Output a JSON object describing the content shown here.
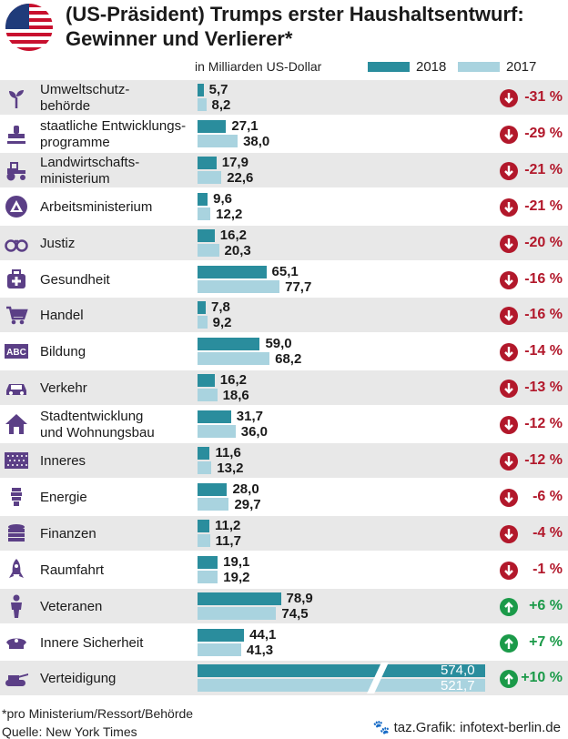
{
  "header": {
    "title_line1": "(US-Präsident) Trumps erster Haushaltsentwurf:",
    "title_line2": "Gewinner und Verlierer*",
    "unit": "in Milliarden US-Dollar",
    "legend_2018": "2018",
    "legend_2017": "2017"
  },
  "colors": {
    "bar_2018": "#2a8d9d",
    "bar_2017": "#a9d3df",
    "loss": "#b2182b",
    "gain": "#1b9a49"
  },
  "chart_data": {
    "type": "bar",
    "title": "(US-Präsident) Trumps erster Haushaltsentwurf: Gewinner und Verlierer*",
    "ylabel": "in Milliarden US-Dollar",
    "categories": [
      "Umweltschutz-behörde",
      "staatliche Entwicklungs-programme",
      "Landwirtschafts-ministerium",
      "Arbeitsministerium",
      "Justiz",
      "Gesundheit",
      "Handel",
      "Bildung",
      "Verkehr",
      "Stadtentwicklung und Wohnungsbau",
      "Inneres",
      "Energie",
      "Finanzen",
      "Raumfahrt",
      "Veteranen",
      "Innere Sicherheit",
      "Verteidigung"
    ],
    "series": [
      {
        "name": "2018",
        "values": [
          5.7,
          27.1,
          17.9,
          9.6,
          16.2,
          65.1,
          7.8,
          59.0,
          16.2,
          31.7,
          11.6,
          28.0,
          11.2,
          19.1,
          78.9,
          44.1,
          574.0
        ]
      },
      {
        "name": "2017",
        "values": [
          8.2,
          38.0,
          22.6,
          12.2,
          20.3,
          77.7,
          9.2,
          68.2,
          18.6,
          36.0,
          13.2,
          29.7,
          11.7,
          19.2,
          74.5,
          41.3,
          521.7
        ]
      }
    ],
    "scale_note": "Verteidigung bar is broken (axis break)",
    "legend": "top-right",
    "rows": [
      {
        "line1": "Umweltschutz-",
        "line2": "behörde",
        "v2018": "5,7",
        "v2017": "8,2",
        "change": "-31 %",
        "dir": "down",
        "icon": "sprout-icon"
      },
      {
        "line1": "staatliche Entwicklungs-",
        "line2": "programme",
        "v2018": "27,1",
        "v2017": "38,0",
        "change": "-29 %",
        "dir": "down",
        "icon": "stamp-icon"
      },
      {
        "line1": "Landwirtschafts-",
        "line2": "ministerium",
        "v2018": "17,9",
        "v2017": "22,6",
        "change": "-21 %",
        "dir": "down",
        "icon": "tractor-icon"
      },
      {
        "line1": "Arbeitsministerium",
        "line2": "",
        "v2018": "9,6",
        "v2017": "12,2",
        "change": "-21 %",
        "dir": "down",
        "icon": "labor-logo-icon"
      },
      {
        "line1": "Justiz",
        "line2": "",
        "v2018": "16,2",
        "v2017": "20,3",
        "change": "-20 %",
        "dir": "down",
        "icon": "handcuffs-icon"
      },
      {
        "line1": "Gesundheit",
        "line2": "",
        "v2018": "65,1",
        "v2017": "77,7",
        "change": "-16 %",
        "dir": "down",
        "icon": "medical-kit-icon"
      },
      {
        "line1": "Handel",
        "line2": "",
        "v2018": "7,8",
        "v2017": "9,2",
        "change": "-16 %",
        "dir": "down",
        "icon": "shopping-cart-icon"
      },
      {
        "line1": "Bildung",
        "line2": "",
        "v2018": "59,0",
        "v2017": "68,2",
        "change": "-14 %",
        "dir": "down",
        "icon": "abc-icon"
      },
      {
        "line1": "Verkehr",
        "line2": "",
        "v2018": "16,2",
        "v2017": "18,6",
        "change": "-13 %",
        "dir": "down",
        "icon": "car-icon"
      },
      {
        "line1": "Stadtentwicklung",
        "line2": "und Wohnungsbau",
        "v2018": "31,7",
        "v2017": "36,0",
        "change": "-12 %",
        "dir": "down",
        "icon": "house-icon"
      },
      {
        "line1": "Inneres",
        "line2": "",
        "v2018": "11,6",
        "v2017": "13,2",
        "change": "-12 %",
        "dir": "down",
        "icon": "stars-flag-icon"
      },
      {
        "line1": "Energie",
        "line2": "",
        "v2018": "28,0",
        "v2017": "29,7",
        "change": "-6 %",
        "dir": "down",
        "icon": "energy-bulb-icon"
      },
      {
        "line1": "Finanzen",
        "line2": "",
        "v2018": "11,2",
        "v2017": "11,7",
        "change": "-4 %",
        "dir": "down",
        "icon": "coins-icon"
      },
      {
        "line1": "Raumfahrt",
        "line2": "",
        "v2018": "19,1",
        "v2017": "19,2",
        "change": "-1 %",
        "dir": "down",
        "icon": "rocket-icon"
      },
      {
        "line1": "Veteranen",
        "line2": "",
        "v2018": "78,9",
        "v2017": "74,5",
        "change": "+6 %",
        "dir": "up",
        "icon": "soldier-icon"
      },
      {
        "line1": "Innere Sicherheit",
        "line2": "",
        "v2018": "44,1",
        "v2017": "41,3",
        "change": "+7 %",
        "dir": "up",
        "icon": "police-cap-icon"
      },
      {
        "line1": "Verteidigung",
        "line2": "",
        "v2018": "574,0",
        "v2017": "521,7",
        "change": "+10 %",
        "dir": "up",
        "icon": "tank-icon"
      }
    ]
  },
  "footer": {
    "note": "*pro Ministerium/Ressort/Behörde",
    "source": "Quelle: New York Times",
    "credit": "taz.Grafik: infotext-berlin.de"
  }
}
